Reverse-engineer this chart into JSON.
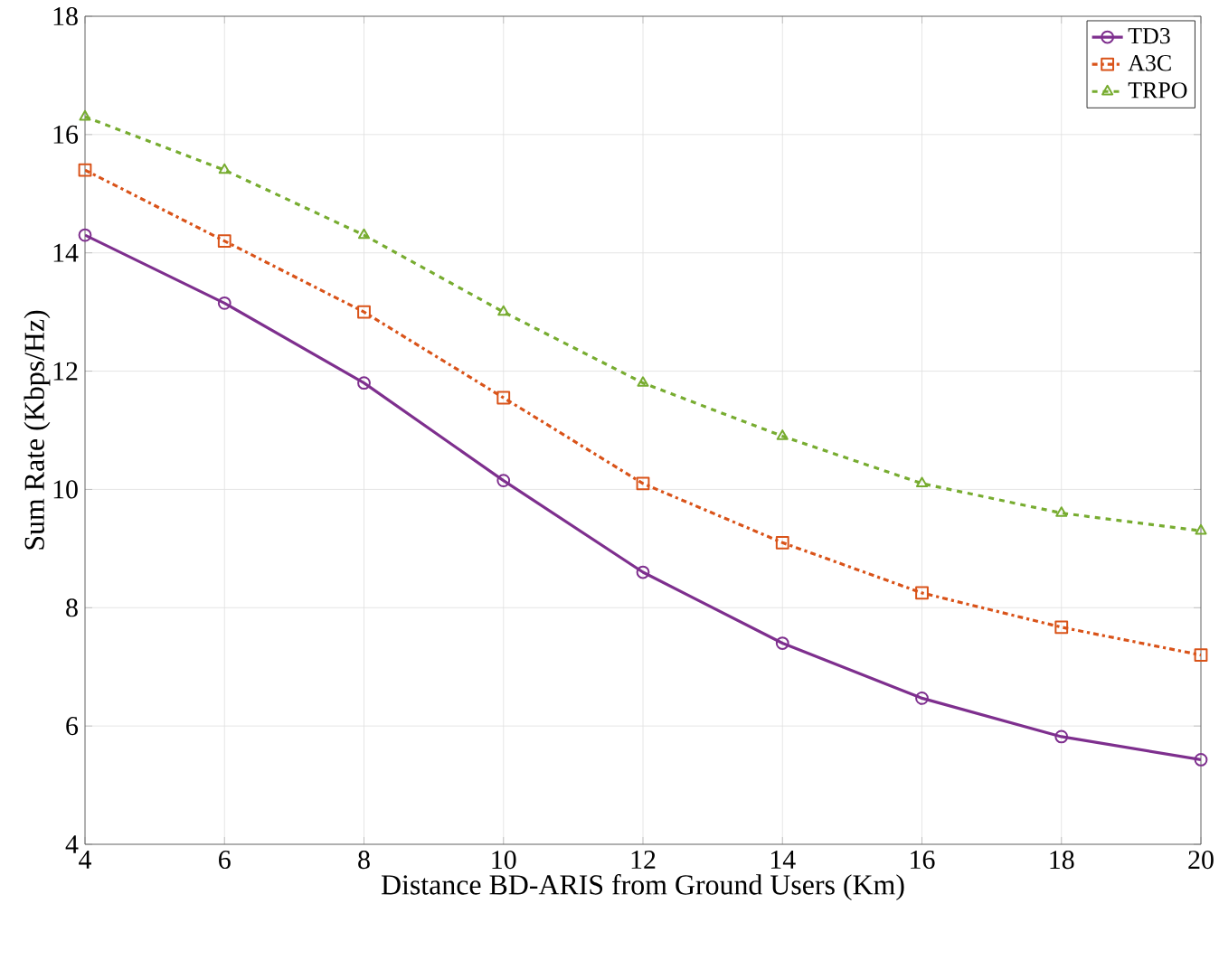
{
  "chart_data": {
    "type": "line",
    "xlabel": "Distance BD-ARIS from Ground Users (Km)",
    "ylabel": "Sum Rate (Kbps/Hz)",
    "x": [
      4,
      6,
      8,
      10,
      12,
      14,
      16,
      18,
      20
    ],
    "series": [
      {
        "name": "TD3",
        "color": "#7e2f8e",
        "marker": "circle",
        "line_style": "solid",
        "values": [
          14.3,
          13.15,
          11.8,
          10.15,
          8.6,
          7.4,
          6.47,
          5.82,
          5.43
        ]
      },
      {
        "name": "A3C",
        "color": "#d95319",
        "marker": "square",
        "line_style": "dashdot",
        "values": [
          15.4,
          14.2,
          13.0,
          11.55,
          10.1,
          9.1,
          8.25,
          7.67,
          7.2
        ]
      },
      {
        "name": "TRPO",
        "color": "#77ac30",
        "marker": "triangle",
        "line_style": "dashed",
        "values": [
          16.3,
          15.4,
          14.3,
          13.0,
          11.8,
          10.9,
          10.1,
          9.6,
          9.3
        ]
      }
    ],
    "xlim": [
      4,
      20
    ],
    "ylim": [
      4,
      18
    ],
    "xticks": [
      4,
      6,
      8,
      10,
      12,
      14,
      16,
      18,
      20
    ],
    "yticks": [
      4,
      6,
      8,
      10,
      12,
      14,
      16,
      18
    ],
    "grid": true,
    "legend": "top right"
  }
}
